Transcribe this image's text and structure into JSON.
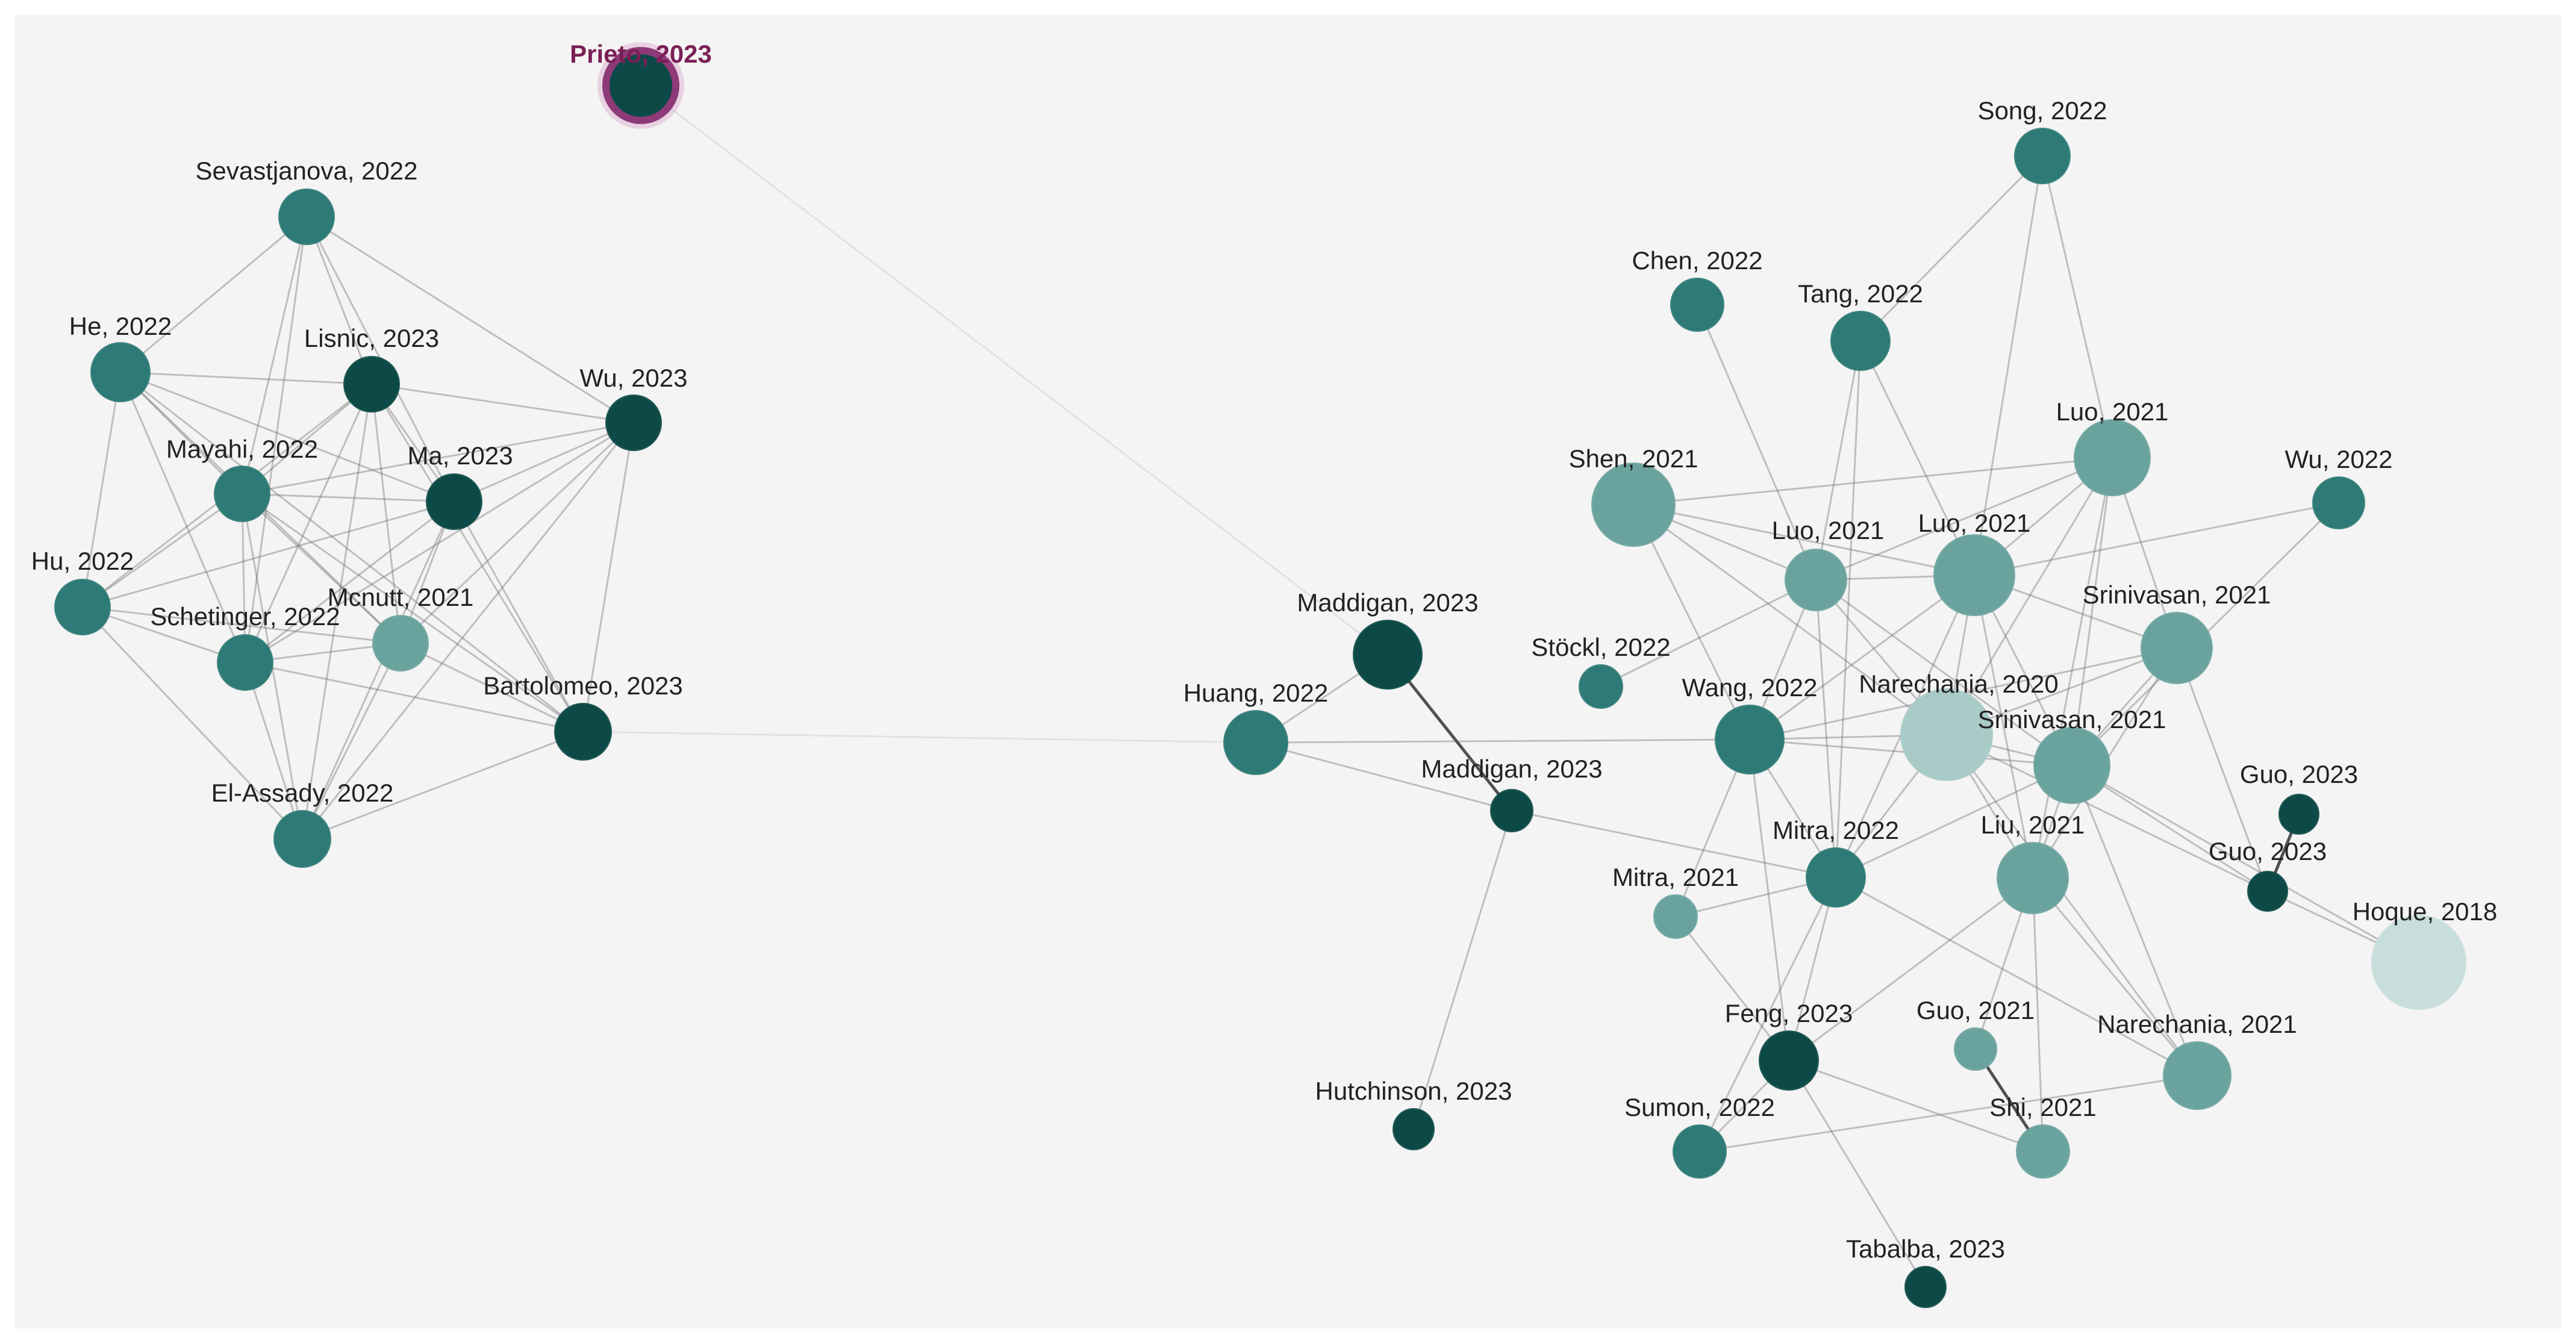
{
  "graph": {
    "nodes": [
      {
        "id": "prieto2023",
        "label": "Prieto, 2023",
        "highlight": true,
        "shade": "dark"
      },
      {
        "id": "sevastjanova2022",
        "label": "Sevastjanova, 2022",
        "shade": "mid"
      },
      {
        "id": "he2022",
        "label": "He, 2022",
        "shade": "mid"
      },
      {
        "id": "lisnic2023",
        "label": "Lisnic, 2023",
        "shade": "dark"
      },
      {
        "id": "wu2023",
        "label": "Wu, 2023",
        "shade": "dark"
      },
      {
        "id": "mayahi2022",
        "label": "Mayahi, 2022",
        "shade": "mid"
      },
      {
        "id": "ma2023",
        "label": "Ma, 2023",
        "shade": "dark"
      },
      {
        "id": "hu2022",
        "label": "Hu, 2022",
        "shade": "mid"
      },
      {
        "id": "mcnutt2021",
        "label": "Mcnutt, 2021",
        "shade": "light"
      },
      {
        "id": "schetinger2022",
        "label": "Schetinger, 2022",
        "shade": "mid"
      },
      {
        "id": "bartolomeo2023",
        "label": "Bartolomeo, 2023",
        "shade": "dark"
      },
      {
        "id": "elassady2022",
        "label": "El-Assady, 2022",
        "shade": "mid"
      },
      {
        "id": "song2022",
        "label": "Song, 2022",
        "shade": "mid"
      },
      {
        "id": "chen2022",
        "label": "Chen, 2022",
        "shade": "mid"
      },
      {
        "id": "tang2022",
        "label": "Tang, 2022",
        "shade": "mid"
      },
      {
        "id": "luo2021a",
        "label": "Luo, 2021",
        "shade": "light"
      },
      {
        "id": "wu2022",
        "label": "Wu, 2022",
        "shade": "mid"
      },
      {
        "id": "shen2021",
        "label": "Shen, 2021",
        "shade": "light"
      },
      {
        "id": "luo2021b",
        "label": "Luo, 2021",
        "shade": "light"
      },
      {
        "id": "luo2021c",
        "label": "Luo, 2021",
        "shade": "light"
      },
      {
        "id": "srinivasan2021a",
        "label": "Srinivasan, 2021",
        "shade": "light"
      },
      {
        "id": "maddigan2023a",
        "label": "Maddigan, 2023",
        "shade": "dark"
      },
      {
        "id": "stockl2022",
        "label": "Stöckl, 2022",
        "shade": "mid"
      },
      {
        "id": "huang2022",
        "label": "Huang, 2022",
        "shade": "mid"
      },
      {
        "id": "wang2022",
        "label": "Wang, 2022",
        "shade": "mid"
      },
      {
        "id": "narechania2020",
        "label": "Narechania, 2020",
        "shade": "pale"
      },
      {
        "id": "srinivasan2021b",
        "label": "Srinivasan, 2021",
        "shade": "light"
      },
      {
        "id": "maddigan2023b",
        "label": "Maddigan, 2023",
        "shade": "dark"
      },
      {
        "id": "guo2023a",
        "label": "Guo, 2023",
        "shade": "dark"
      },
      {
        "id": "mitra2022",
        "label": "Mitra, 2022",
        "shade": "mid"
      },
      {
        "id": "liu2021",
        "label": "Liu, 2021",
        "shade": "light"
      },
      {
        "id": "guo2023b",
        "label": "Guo, 2023",
        "shade": "dark"
      },
      {
        "id": "mitra2021",
        "label": "Mitra, 2021",
        "shade": "light"
      },
      {
        "id": "hoque2018",
        "label": "Hoque, 2018",
        "shade": "paler"
      },
      {
        "id": "feng2023",
        "label": "Feng, 2023",
        "shade": "dark"
      },
      {
        "id": "guo2021",
        "label": "Guo, 2021",
        "shade": "light"
      },
      {
        "id": "narechania2021",
        "label": "Narechania, 2021",
        "shade": "light"
      },
      {
        "id": "hutchinson2023",
        "label": "Hutchinson, 2023",
        "shade": "dark"
      },
      {
        "id": "sumon2022",
        "label": "Sumon, 2022",
        "shade": "mid"
      },
      {
        "id": "shi2021",
        "label": "Shi, 2021",
        "shade": "light"
      },
      {
        "id": "tabalba2023",
        "label": "Tabalba, 2023",
        "shade": "dark"
      }
    ],
    "edges": [
      [
        "sevastjanova2022",
        "he2022"
      ],
      [
        "sevastjanova2022",
        "lisnic2023"
      ],
      [
        "sevastjanova2022",
        "mayahi2022"
      ],
      [
        "sevastjanova2022",
        "ma2023"
      ],
      [
        "sevastjanova2022",
        "schetinger2022"
      ],
      [
        "sevastjanova2022",
        "wu2023"
      ],
      [
        "he2022",
        "lisnic2023"
      ],
      [
        "he2022",
        "mayahi2022"
      ],
      [
        "he2022",
        "ma2023"
      ],
      [
        "he2022",
        "schetinger2022"
      ],
      [
        "he2022",
        "hu2022"
      ],
      [
        "he2022",
        "mcnutt2021"
      ],
      [
        "he2022",
        "bartolomeo2023"
      ],
      [
        "lisnic2023",
        "wu2023"
      ],
      [
        "lisnic2023",
        "mayahi2022"
      ],
      [
        "lisnic2023",
        "ma2023"
      ],
      [
        "lisnic2023",
        "mcnutt2021"
      ],
      [
        "lisnic2023",
        "schetinger2022"
      ],
      [
        "lisnic2023",
        "bartolomeo2023"
      ],
      [
        "lisnic2023",
        "elassady2022"
      ],
      [
        "lisnic2023",
        "hu2022"
      ],
      [
        "wu2023",
        "ma2023"
      ],
      [
        "wu2023",
        "mayahi2022"
      ],
      [
        "wu2023",
        "mcnutt2021"
      ],
      [
        "wu2023",
        "schetinger2022"
      ],
      [
        "wu2023",
        "bartolomeo2023"
      ],
      [
        "wu2023",
        "elassady2022"
      ],
      [
        "mayahi2022",
        "ma2023"
      ],
      [
        "mayahi2022",
        "hu2022"
      ],
      [
        "mayahi2022",
        "mcnutt2021"
      ],
      [
        "mayahi2022",
        "schetinger2022"
      ],
      [
        "mayahi2022",
        "bartolomeo2023"
      ],
      [
        "mayahi2022",
        "elassady2022"
      ],
      [
        "ma2023",
        "hu2022"
      ],
      [
        "ma2023",
        "mcnutt2021"
      ],
      [
        "ma2023",
        "schetinger2022"
      ],
      [
        "ma2023",
        "bartolomeo2023"
      ],
      [
        "ma2023",
        "elassady2022"
      ],
      [
        "hu2022",
        "schetinger2022"
      ],
      [
        "hu2022",
        "mcnutt2021"
      ],
      [
        "hu2022",
        "elassady2022"
      ],
      [
        "mcnutt2021",
        "schetinger2022"
      ],
      [
        "mcnutt2021",
        "bartolomeo2023"
      ],
      [
        "mcnutt2021",
        "elassady2022"
      ],
      [
        "schetinger2022",
        "bartolomeo2023"
      ],
      [
        "schetinger2022",
        "elassady2022"
      ],
      [
        "bartolomeo2023",
        "elassady2022"
      ],
      [
        "prieto2023",
        "maddigan2023a"
      ],
      [
        "bartolomeo2023",
        "huang2022"
      ],
      [
        "song2022",
        "tang2022"
      ],
      [
        "song2022",
        "luo2021c"
      ],
      [
        "song2022",
        "luo2021a"
      ],
      [
        "chen2022",
        "luo2021b"
      ],
      [
        "tang2022",
        "luo2021b"
      ],
      [
        "tang2022",
        "luo2021c"
      ],
      [
        "tang2022",
        "mitra2022"
      ],
      [
        "luo2021a",
        "shen2021"
      ],
      [
        "luo2021a",
        "luo2021c"
      ],
      [
        "luo2021a",
        "srinivasan2021a"
      ],
      [
        "luo2021a",
        "srinivasan2021b"
      ],
      [
        "luo2021a",
        "narechania2020"
      ],
      [
        "luo2021a",
        "liu2021"
      ],
      [
        "luo2021a",
        "luo2021b"
      ],
      [
        "wu2022",
        "luo2021c"
      ],
      [
        "wu2022",
        "srinivasan2021b"
      ],
      [
        "shen2021",
        "luo2021b"
      ],
      [
        "shen2021",
        "luo2021c"
      ],
      [
        "shen2021",
        "wang2022"
      ],
      [
        "shen2021",
        "narechania2020"
      ],
      [
        "luo2021b",
        "luo2021c"
      ],
      [
        "luo2021b",
        "wang2022"
      ],
      [
        "luo2021b",
        "narechania2020"
      ],
      [
        "luo2021b",
        "srinivasan2021b"
      ],
      [
        "luo2021b",
        "mitra2022"
      ],
      [
        "luo2021b",
        "stockl2022"
      ],
      [
        "luo2021c",
        "srinivasan2021a"
      ],
      [
        "luo2021c",
        "narechania2020"
      ],
      [
        "luo2021c",
        "srinivasan2021b"
      ],
      [
        "luo2021c",
        "wang2022"
      ],
      [
        "luo2021c",
        "liu2021"
      ],
      [
        "luo2021c",
        "mitra2022"
      ],
      [
        "srinivasan2021a",
        "narechania2020"
      ],
      [
        "srinivasan2021a",
        "srinivasan2021b"
      ],
      [
        "srinivasan2021a",
        "wang2022"
      ],
      [
        "srinivasan2021a",
        "liu2021"
      ],
      [
        "srinivasan2021a",
        "guo2023b"
      ],
      [
        "maddigan2023a",
        "maddigan2023b"
      ],
      [
        "maddigan2023a",
        "huang2022"
      ],
      [
        "huang2022",
        "maddigan2023b"
      ],
      [
        "huang2022",
        "wang2022"
      ],
      [
        "wang2022",
        "narechania2020"
      ],
      [
        "wang2022",
        "srinivasan2021b"
      ],
      [
        "wang2022",
        "mitra2022"
      ],
      [
        "wang2022",
        "feng2023"
      ],
      [
        "wang2022",
        "mitra2021"
      ],
      [
        "narechania2020",
        "srinivasan2021b"
      ],
      [
        "narechania2020",
        "mitra2022"
      ],
      [
        "narechania2020",
        "liu2021"
      ],
      [
        "narechania2020",
        "narechania2021"
      ],
      [
        "narechania2020",
        "guo2023b"
      ],
      [
        "srinivasan2021b",
        "liu2021"
      ],
      [
        "srinivasan2021b",
        "guo2023b"
      ],
      [
        "srinivasan2021b",
        "hoque2018"
      ],
      [
        "srinivasan2021b",
        "mitra2022"
      ],
      [
        "srinivasan2021b",
        "narechania2021"
      ],
      [
        "maddigan2023b",
        "mitra2022"
      ],
      [
        "maddigan2023b",
        "hutchinson2023"
      ],
      [
        "mitra2022",
        "narechania2021"
      ],
      [
        "mitra2022",
        "feng2023"
      ],
      [
        "mitra2022",
        "sumon2022"
      ],
      [
        "mitra2022",
        "mitra2021"
      ],
      [
        "liu2021",
        "guo2021"
      ],
      [
        "liu2021",
        "narechania2021"
      ],
      [
        "liu2021",
        "shi2021"
      ],
      [
        "liu2021",
        "feng2023"
      ],
      [
        "guo2023a",
        "guo2023b"
      ],
      [
        "guo2023b",
        "hoque2018"
      ],
      [
        "guo2021",
        "shi2021"
      ],
      [
        "feng2023",
        "sumon2022"
      ],
      [
        "feng2023",
        "tabalba2023"
      ],
      [
        "feng2023",
        "shi2021"
      ],
      [
        "narechania2021",
        "sumon2022"
      ],
      [
        "mitra2021",
        "feng2023"
      ]
    ],
    "colors": {
      "dark": "#0d4a47",
      "mid": "#2e7a76",
      "light": "#6aa39e",
      "pale": "#a8cbc7",
      "paler": "#c7dedb",
      "highlight_ring": "#8e3a78",
      "background": "#f4f4f4",
      "edge": "#666666"
    }
  }
}
